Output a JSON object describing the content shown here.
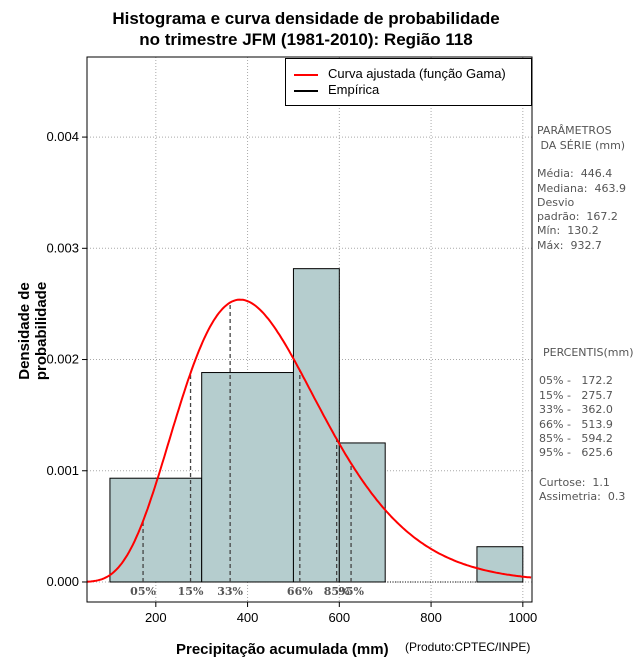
{
  "chart_data": {
    "type": "histogram",
    "title_line1": "Histograma e curva densidade de probabilidade",
    "title_line2": "no trimestre JFM (1981-2010): Região 118",
    "xlabel": "Precipitação acumulada (mm)",
    "ylabel": "Densidade de probabilidade",
    "credit": "(Produto:CPTEC/INPE)",
    "xlim": [
      50,
      1020
    ],
    "ylim": [
      -0.00018,
      0.00472
    ],
    "x_ticks": [
      200,
      400,
      600,
      800,
      1000
    ],
    "y_ticks": [
      0.0,
      0.001,
      0.002,
      0.003,
      0.004
    ],
    "y_tick_labels": [
      "0.000",
      "0.001",
      "0.002",
      "0.003",
      "0.004"
    ],
    "grid": true,
    "bins": [
      {
        "start": 100,
        "end": 300,
        "density": 0.000933
      },
      {
        "start": 300,
        "end": 500,
        "density": 0.001883
      },
      {
        "start": 500,
        "end": 600,
        "density": 0.002817
      },
      {
        "start": 600,
        "end": 700,
        "density": 0.00125
      },
      {
        "start": 900,
        "end": 1000,
        "density": 0.000317
      }
    ],
    "gamma_fit": {
      "mean": 446.4,
      "sd": 167.2
    },
    "percentiles": [
      {
        "label": "05%",
        "value": 172.2
      },
      {
        "label": "15%",
        "value": 275.7
      },
      {
        "label": "33%",
        "value": 362.0
      },
      {
        "label": "66%",
        "value": 513.9
      },
      {
        "label": "85%",
        "value": 594.2
      },
      {
        "label": "95%",
        "value": 625.6
      }
    ],
    "legend": {
      "fitted": "Curva ajustada (função Gama)",
      "empirical": "Empírica"
    },
    "colors": {
      "bar_fill": "#b5cdce",
      "curve": "#ff0000",
      "grid": "#a9a9a9",
      "percentile_line": "#444444"
    }
  },
  "stats_panel": {
    "header_1": "PARÂMETROS",
    "header_2": " DA SÉRIE (mm)",
    "media": "Média:  446.4",
    "mediana": "Mediana:  463.9",
    "desvio_1": "Desvio",
    "desvio_2": "padrão:  167.2",
    "min": "Mín:  130.2",
    "max": "Máx:  932.7"
  },
  "percentiles_panel": {
    "header": "PERCENTIS(mm)",
    "p05": "05% -   172.2",
    "p15": "15% -   275.7",
    "p33": "33% -   362.0",
    "p66": "66% -   513.9",
    "p85": "85% -   594.2",
    "p95": "95% -   625.6",
    "curtose": "Curtose:  1.1",
    "assimetria": "Assimetria:  0.3"
  }
}
